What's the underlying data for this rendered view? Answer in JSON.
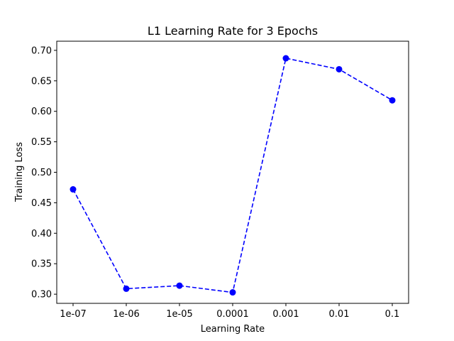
{
  "chart_data": {
    "type": "line",
    "title": "L1 Learning Rate for 3 Epochs",
    "xlabel": "Learning Rate",
    "ylabel": "Training Loss",
    "categories": [
      "1e-07",
      "1e-06",
      "1e-05",
      "0.0001",
      "0.001",
      "0.01",
      "0.1"
    ],
    "series": [
      {
        "values": [
          0.472,
          0.309,
          0.314,
          0.303,
          0.687,
          0.669,
          0.618
        ],
        "color": "#0000ff",
        "line_style": "dashed",
        "marker": "circle"
      }
    ],
    "ylim": [
      0.285,
      0.715
    ],
    "yticks": [
      "0.30",
      "0.35",
      "0.40",
      "0.45",
      "0.50",
      "0.55",
      "0.60",
      "0.65",
      "0.70"
    ],
    "grid": false,
    "legend": "none"
  }
}
